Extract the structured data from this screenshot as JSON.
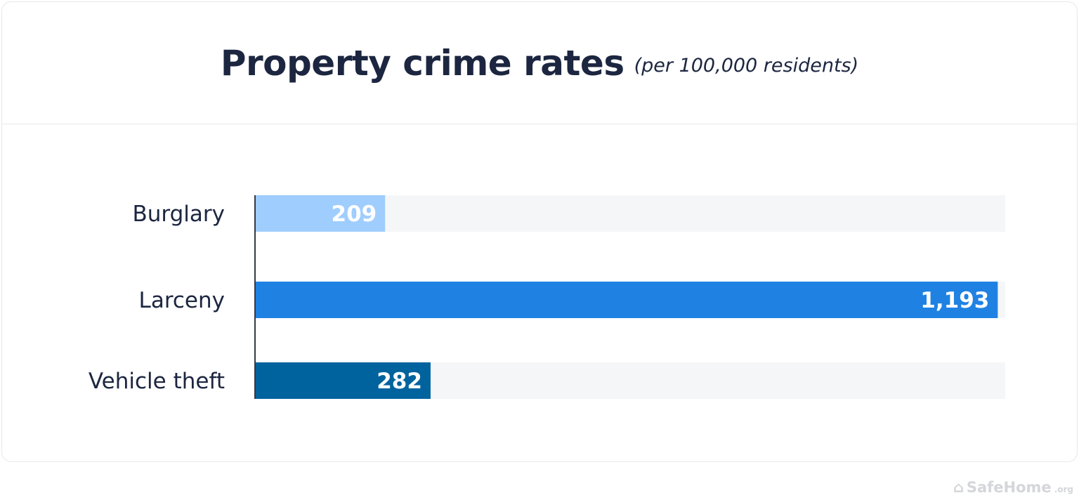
{
  "chart_data": {
    "type": "bar",
    "orientation": "horizontal",
    "title": "Property crime rates",
    "subtitle": "(per 100,000 residents)",
    "categories": [
      "Burglary",
      "Larceny",
      "Vehicle theft"
    ],
    "values": [
      209,
      1193,
      282
    ],
    "value_labels": [
      "209",
      "1,193",
      "282"
    ],
    "colors": [
      "#9fcdfd",
      "#1f82e3",
      "#00639e"
    ],
    "track_color": "#f5f6f8",
    "xlim": [
      0,
      1205
    ],
    "grid": false
  },
  "watermark": {
    "text": "SafeHome",
    "suffix": ".org",
    "icon": "house-icon"
  }
}
